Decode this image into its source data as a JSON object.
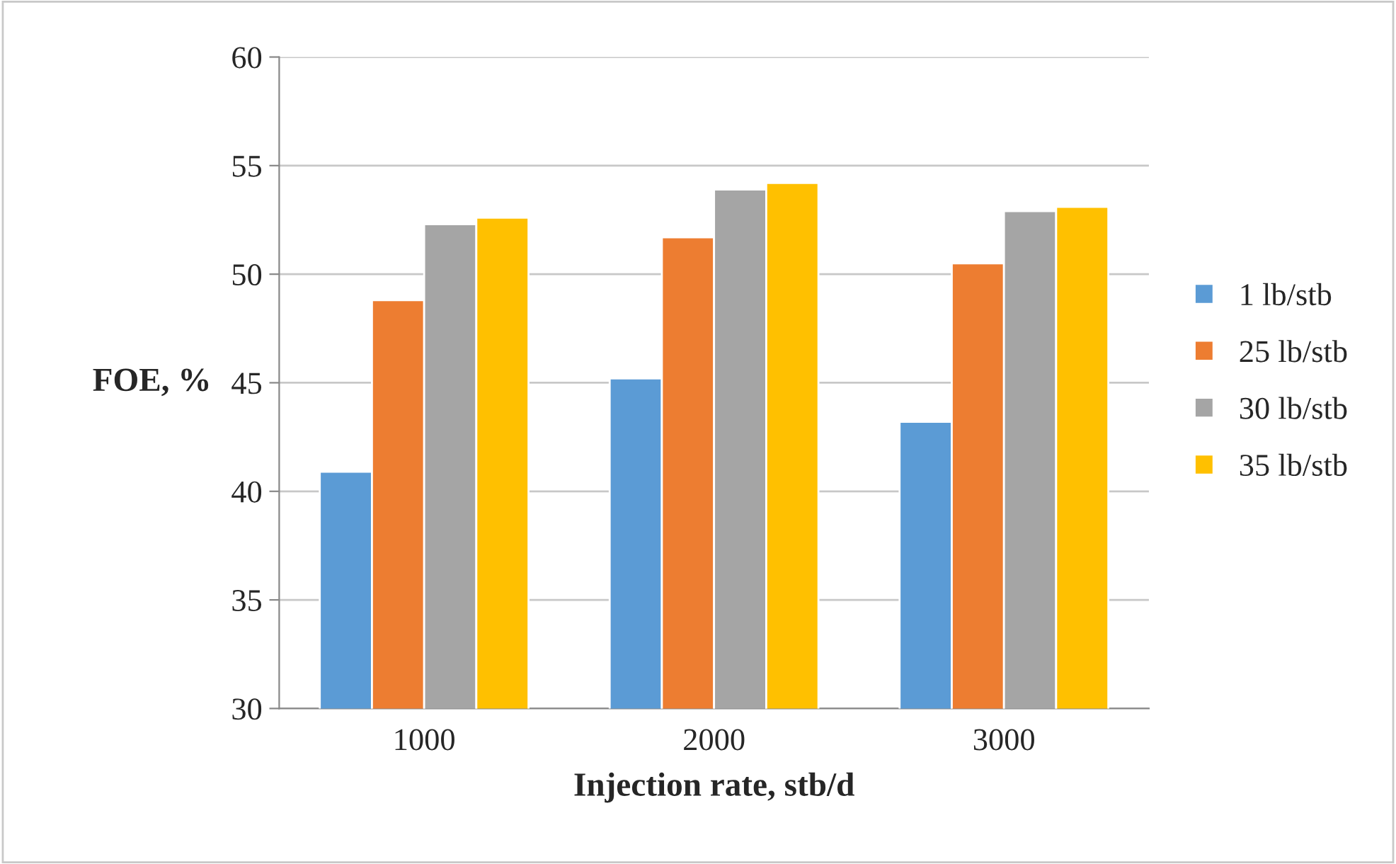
{
  "chart_data": {
    "type": "bar",
    "xlabel": "Injection rate, stb/d",
    "ylabel": "FOE, %",
    "categories": [
      "1000",
      "2000",
      "3000"
    ],
    "series": [
      {
        "name": "1 lb/stb",
        "color": "#5b9bd5",
        "values": [
          40.9,
          45.2,
          43.2
        ]
      },
      {
        "name": "25 lb/stb",
        "color": "#ed7d31",
        "values": [
          48.8,
          51.7,
          50.5
        ]
      },
      {
        "name": "30 lb/stb",
        "color": "#a5a5a5",
        "values": [
          52.3,
          53.9,
          52.9
        ]
      },
      {
        "name": "35 lb/stb",
        "color": "#ffc000",
        "values": [
          52.6,
          54.2,
          53.1
        ]
      }
    ],
    "ylim": [
      30,
      60
    ],
    "yticks": [
      30,
      35,
      40,
      45,
      50,
      55,
      60
    ],
    "grid": "y",
    "legend": "right"
  }
}
